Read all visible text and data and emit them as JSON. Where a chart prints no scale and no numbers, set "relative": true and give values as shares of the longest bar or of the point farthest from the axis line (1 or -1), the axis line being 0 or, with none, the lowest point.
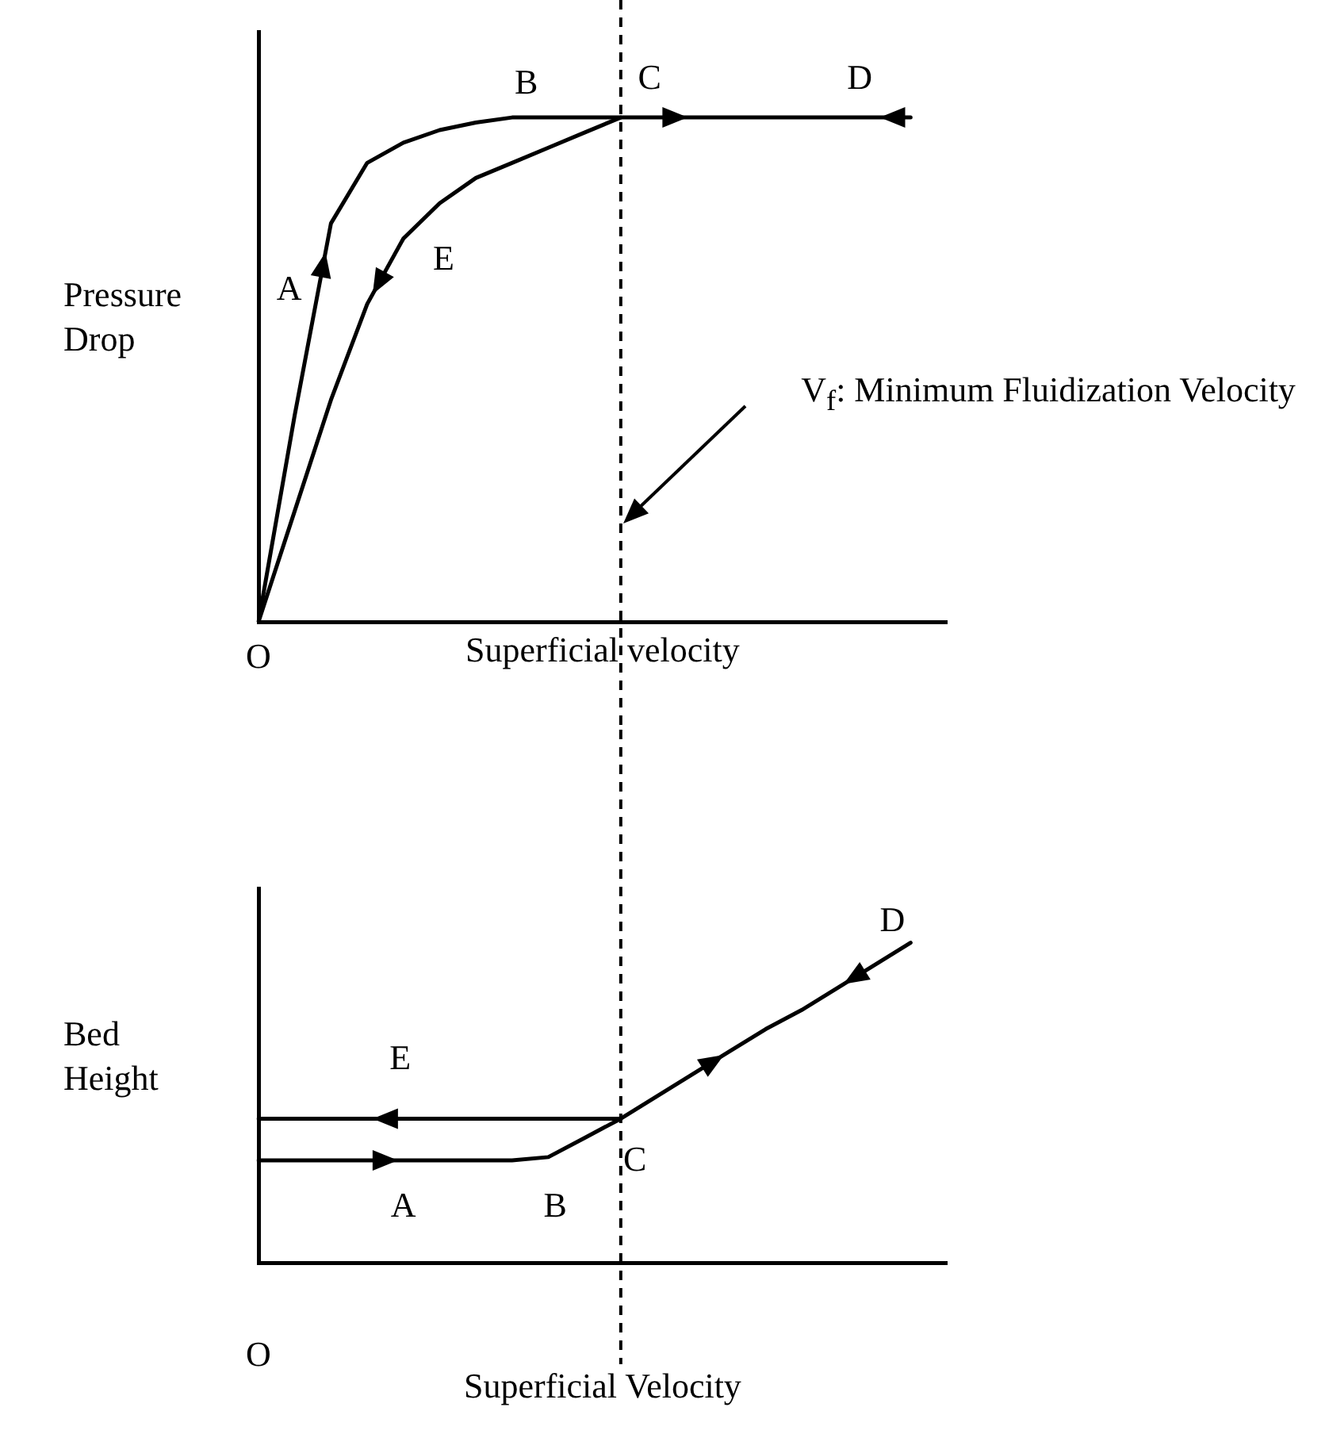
{
  "chart_data": [
    {
      "type": "line",
      "relative": true,
      "xlabel": "Superficial velocity",
      "ylabel": "Pressure Drop",
      "tick_labels": false,
      "grid": false,
      "legend": false,
      "marker": "none",
      "line_style": "solid",
      "categories": [
        null,
        null,
        null,
        null,
        null,
        null,
        null,
        null,
        null,
        null,
        null,
        null,
        null,
        null,
        null,
        null,
        null,
        null,
        null,
        null
      ],
      "series": [
        {
          "color": "#000000",
          "values": [
            0,
            0.41,
            0.79,
            0.91,
            0.95,
            0.975,
            0.99,
            1,
            1,
            1,
            1,
            1,
            1,
            1,
            1,
            1,
            1,
            1,
            1,
            null
          ]
        },
        {
          "color": "#000000",
          "values": [
            0,
            0.22,
            0.44,
            0.63,
            0.76,
            0.83,
            0.88,
            0.91,
            0.94,
            0.97,
            1,
            null,
            null,
            null,
            null,
            null,
            null,
            null,
            null,
            null
          ]
        }
      ],
      "annotations": [
        "O",
        "A",
        "B",
        "C",
        "D",
        "E",
        "V$_{f}$: Minimum Fluidization Velocity"
      ]
    },
    {
      "type": "line",
      "relative": true,
      "xlabel": "Superficial Velocity",
      "ylabel": "Bed Height",
      "tick_labels": false,
      "grid": false,
      "legend": false,
      "marker": "none",
      "line_style": "solid",
      "categories": [
        null,
        null,
        null,
        null,
        null,
        null,
        null,
        null,
        null,
        null,
        null,
        null,
        null,
        null,
        null,
        null,
        null,
        null,
        null,
        null
      ],
      "series": [
        {
          "color": "#000000",
          "values": [
            0.32,
            0.32,
            0.32,
            0.32,
            0.32,
            0.32,
            0.32,
            0.32,
            0.33,
            0.39,
            0.45,
            0.52,
            0.59,
            0.66,
            0.73,
            0.79,
            0.86,
            0.93,
            1,
            null
          ]
        },
        {
          "color": "#000000",
          "values": [
            0.45,
            0.45,
            0.45,
            0.45,
            0.45,
            0.45,
            0.45,
            0.45,
            0.45,
            0.45,
            0.45,
            null,
            null,
            null,
            null,
            null,
            null,
            null,
            null,
            null
          ]
        }
      ],
      "annotations": [
        "O",
        "A",
        "B",
        "C",
        "D",
        "E"
      ]
    }
  ]
}
